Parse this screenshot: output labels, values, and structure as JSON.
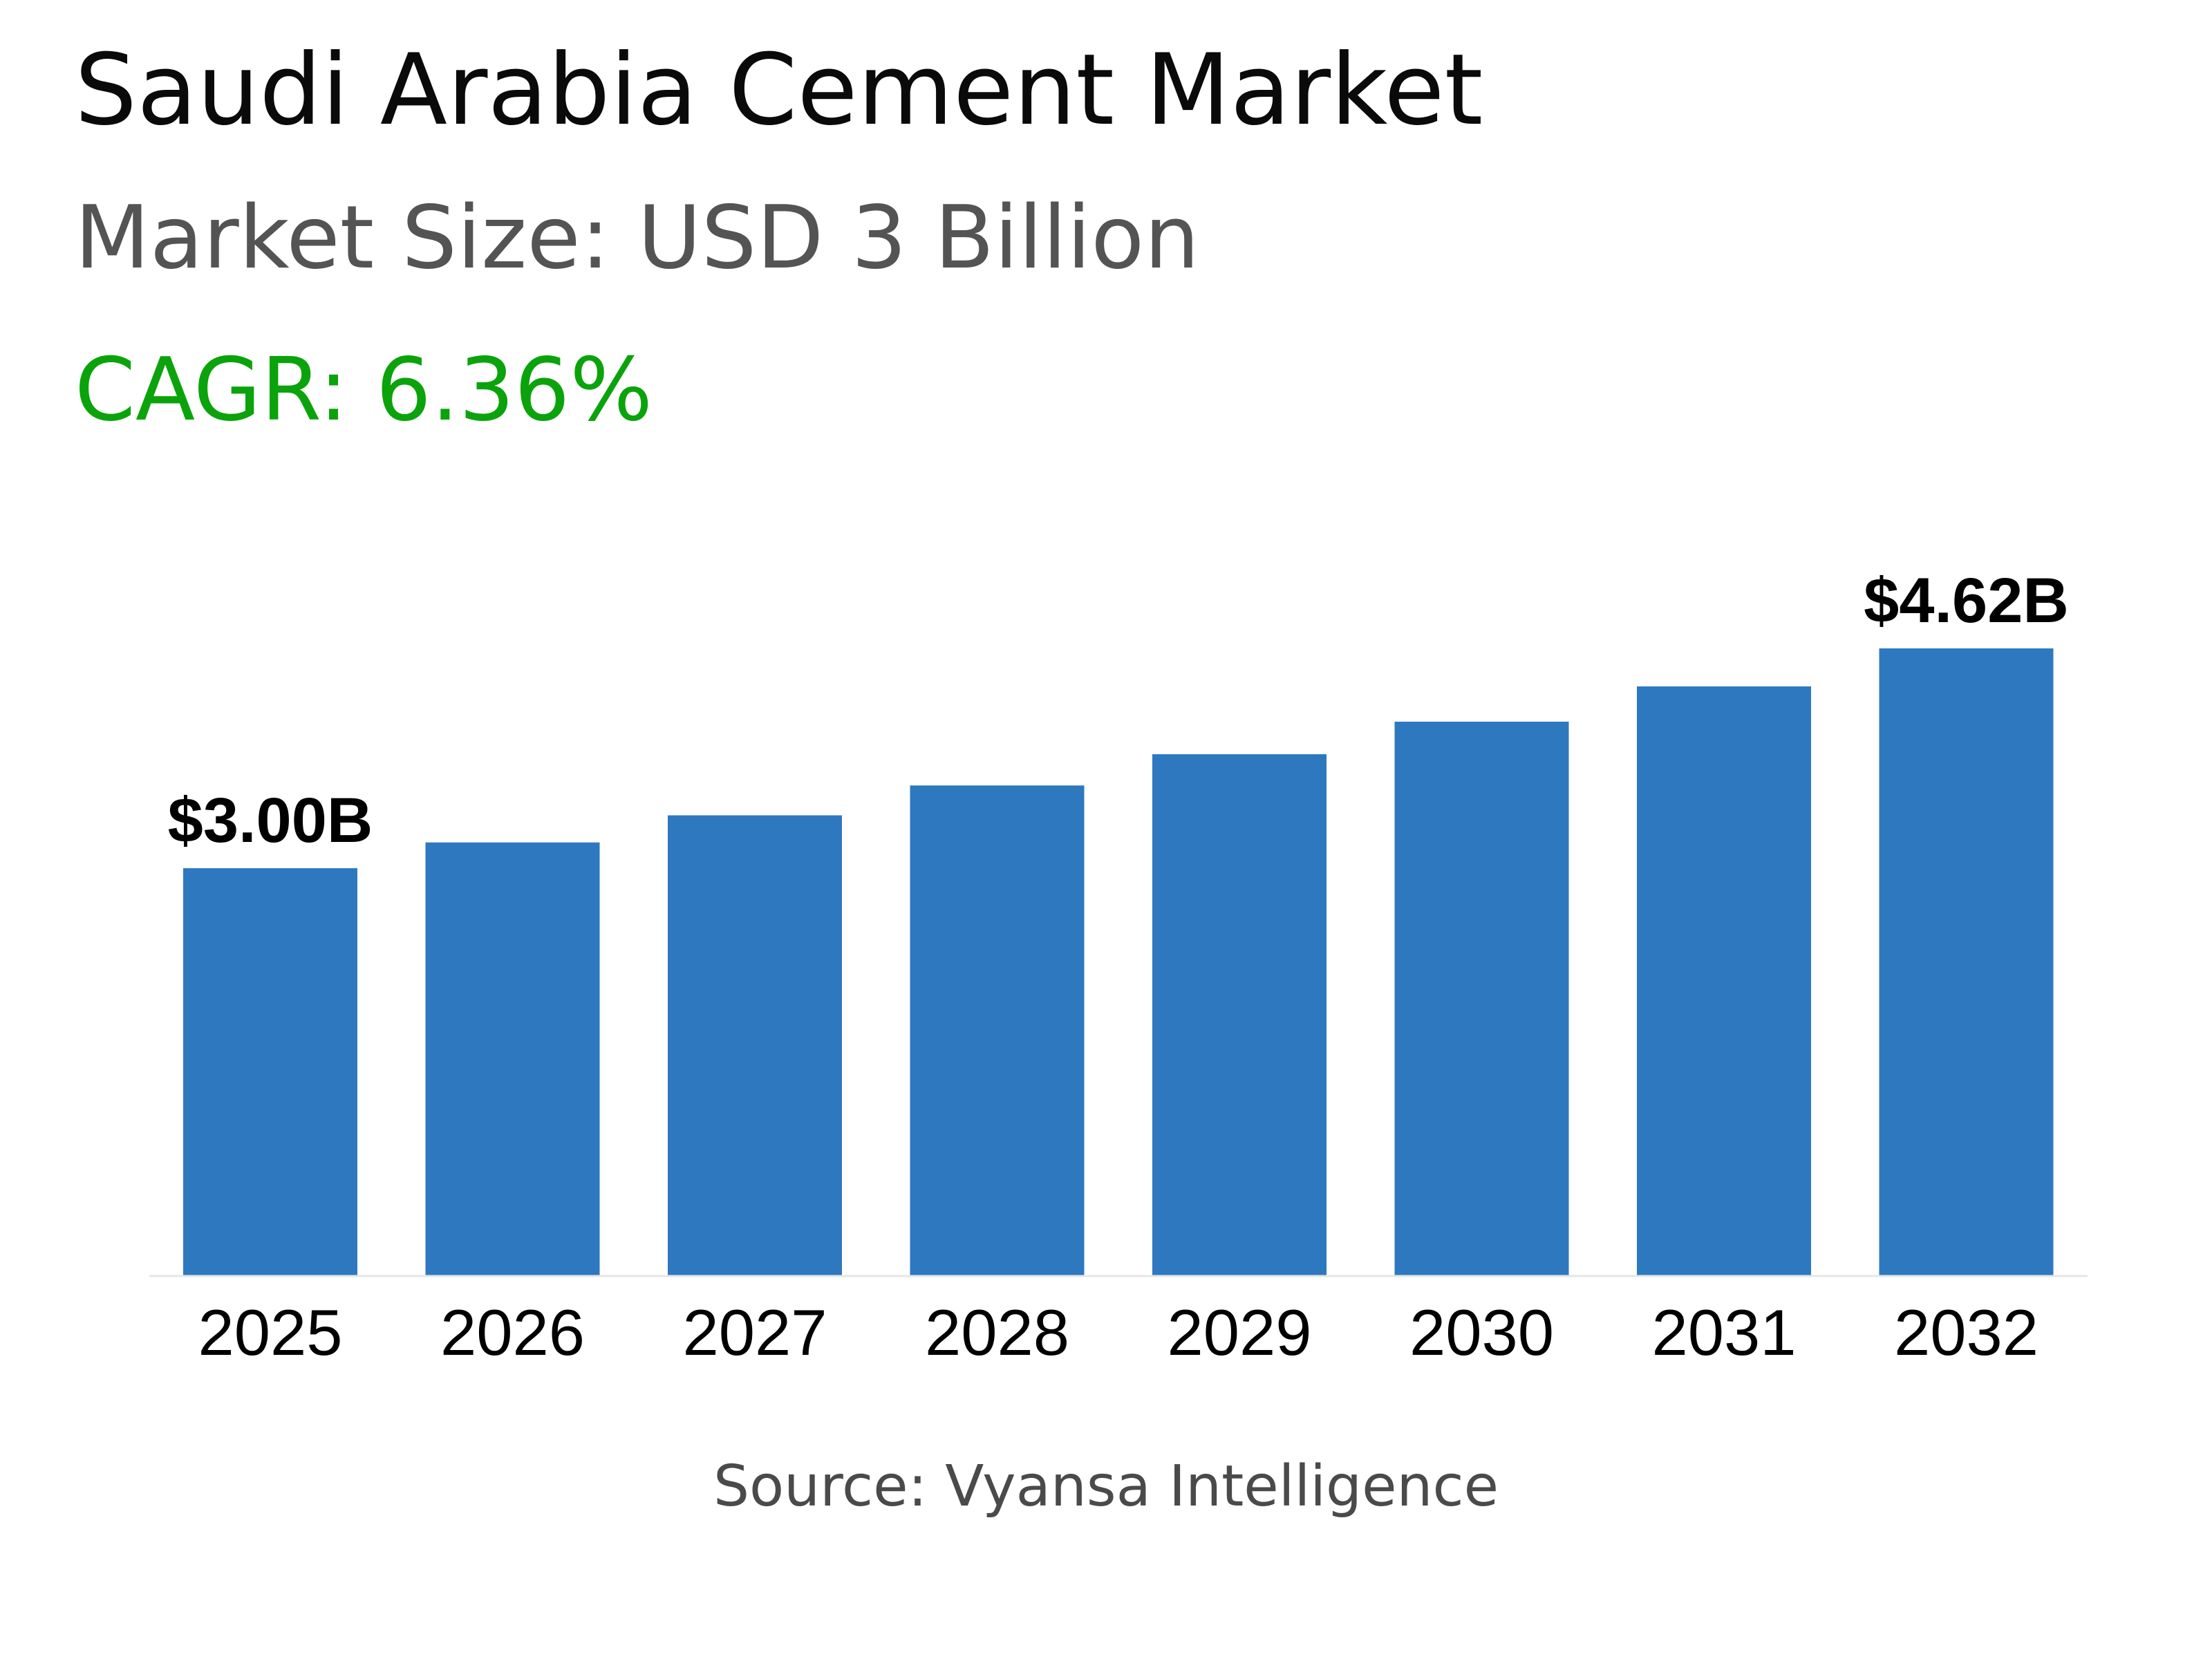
{
  "header": {
    "title": "Saudi Arabia Cement Market",
    "market_size": "Market Size: USD 3 Billion",
    "cagr": "CAGR: 6.36%"
  },
  "footer": {
    "source": "Source: Vyansa Intelligence"
  },
  "colors": {
    "bar": "#2e78c0",
    "cagr": "#0ba30b",
    "title": "#0a0a0a",
    "subtitle": "#545454"
  },
  "chart_data": {
    "type": "bar",
    "categories": [
      "2025",
      "2026",
      "2027",
      "2028",
      "2029",
      "2030",
      "2031",
      "2032"
    ],
    "values": [
      3.0,
      3.19,
      3.39,
      3.61,
      3.84,
      4.08,
      4.34,
      4.62
    ],
    "data_labels": [
      {
        "index": 0,
        "text": "$3.00B"
      },
      {
        "index": 7,
        "text": "$4.62B"
      }
    ],
    "title": "",
    "xlabel": "",
    "ylabel": "",
    "ylim": [
      0,
      4.62
    ],
    "grid": false,
    "legend": "none"
  }
}
